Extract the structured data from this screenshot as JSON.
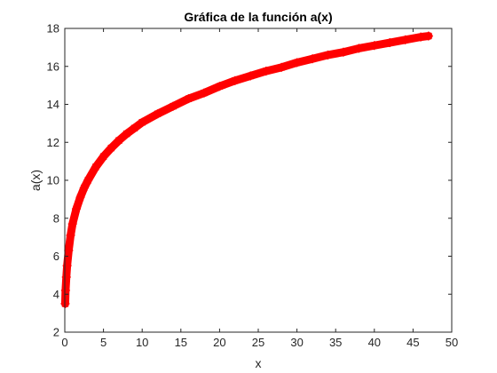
{
  "chart_data": {
    "type": "scatter",
    "title": "Gráfica de la función a(x)",
    "xlabel": "x",
    "ylabel": "a(x)",
    "xlim": [
      0,
      50
    ],
    "ylim": [
      2,
      18
    ],
    "xticks": [
      0,
      5,
      10,
      15,
      20,
      25,
      30,
      35,
      40,
      45,
      50
    ],
    "yticks": [
      2,
      4,
      6,
      8,
      10,
      12,
      14,
      16,
      18
    ],
    "grid": false,
    "series": [
      {
        "marker": "asterisk",
        "color": "#ff0000",
        "x": [
          0.05,
          0.1,
          0.2,
          0.3,
          0.5,
          0.75,
          1,
          1.5,
          2,
          2.5,
          3,
          4,
          5,
          6,
          7,
          8,
          9,
          10,
          12,
          14,
          16,
          18,
          20,
          22,
          24,
          26,
          28,
          30,
          32,
          34,
          36,
          38,
          40,
          42,
          44,
          46,
          47
        ],
        "y": [
          3.5,
          4.2,
          4.9,
          5.5,
          6.3,
          7.1,
          7.7,
          8.5,
          9.1,
          9.6,
          10.0,
          10.7,
          11.25,
          11.7,
          12.1,
          12.45,
          12.75,
          13.05,
          13.5,
          13.9,
          14.3,
          14.6,
          14.95,
          15.25,
          15.5,
          15.75,
          15.95,
          16.2,
          16.4,
          16.6,
          16.75,
          16.95,
          17.1,
          17.25,
          17.4,
          17.55,
          17.6
        ]
      }
    ]
  }
}
